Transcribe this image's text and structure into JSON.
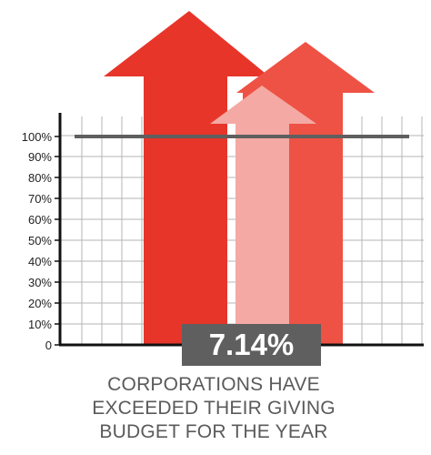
{
  "chart_data": {
    "type": "bar",
    "title": "",
    "xlabel": "",
    "ylabel": "",
    "ylim": [
      0,
      100
    ],
    "yticks": [
      "0",
      "10%",
      "20%",
      "30%",
      "40%",
      "50%",
      "60%",
      "70%",
      "80%",
      "90%",
      "100%"
    ],
    "grid": true,
    "reference_line": 100,
    "arrows": [
      {
        "color": "#e8352a",
        "value": 100
      },
      {
        "color": "#ee5244",
        "value": 100
      },
      {
        "color": "#f4a9a4",
        "value": 100
      }
    ],
    "callout": "7.14%",
    "caption": [
      "CORPORATIONS HAVE",
      "EXCEEDED THEIR GIVING",
      "BUDGET FOR THE YEAR"
    ]
  },
  "colors": {
    "axis": "#111111",
    "grid": "#b5b5b5",
    "reference_line": "#5f5f5f",
    "callout_bg": "#5f5f5f",
    "caption_text": "#5a5a5a"
  }
}
